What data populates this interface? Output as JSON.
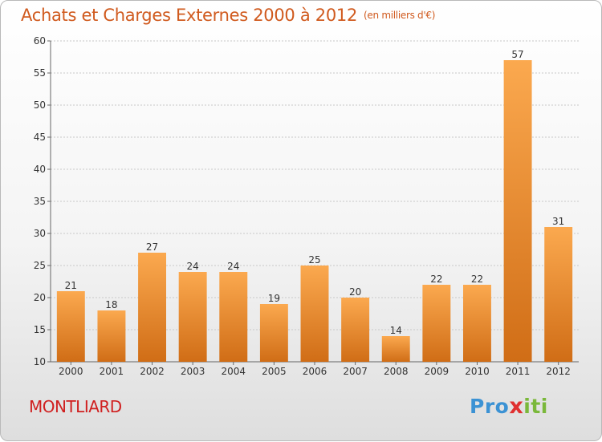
{
  "header": {
    "title": "Achats et Charges Externes 2000 à 2012",
    "units": "(en milliers d'€)"
  },
  "footer": {
    "place": "MONTLIARD",
    "brand_parts": [
      "Pro",
      "x",
      "iti"
    ]
  },
  "colors": {
    "bar_light": "#fba94f",
    "bar_dark": "#d06d16",
    "title": "#d05a1e",
    "place": "#d02020",
    "grid": "#c8c8c8",
    "brand_pro": "#3b92d4",
    "brand_x": "#e03030",
    "brand_i": "#7ab83a"
  },
  "chart_data": {
    "type": "bar",
    "title": "Achats et Charges Externes 2000 à 2012",
    "subtitle": "(en milliers d'€)",
    "xlabel": "",
    "ylabel": "",
    "categories": [
      "2000",
      "2001",
      "2002",
      "2003",
      "2004",
      "2005",
      "2006",
      "2007",
      "2008",
      "2009",
      "2010",
      "2011",
      "2012"
    ],
    "values": [
      21,
      18,
      27,
      24,
      24,
      19,
      25,
      20,
      14,
      22,
      22,
      57,
      31
    ],
    "ylim": [
      10,
      60
    ],
    "yticks": [
      10,
      15,
      20,
      25,
      30,
      35,
      40,
      45,
      50,
      55,
      60
    ],
    "grid": true,
    "data_labels": true
  }
}
